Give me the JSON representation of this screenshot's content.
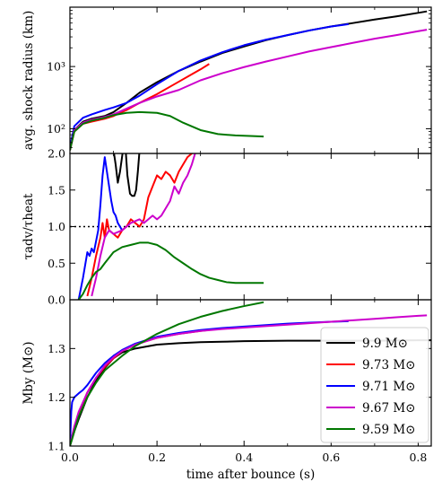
{
  "chart_data": [
    {
      "type": "line",
      "panel": "top",
      "ylabel": "avg. shock radius (km)",
      "yscale": "log",
      "xlim": [
        0.0,
        0.83
      ],
      "ylim": [
        40,
        9000
      ],
      "y_tick_labels": [
        "10²",
        "10³"
      ],
      "y_tick_values": [
        100,
        1000
      ],
      "series": [
        {
          "name": "9.9 M⊙",
          "color": "#000000",
          "x": [
            0.0,
            0.01,
            0.03,
            0.05,
            0.08,
            0.1,
            0.13,
            0.16,
            0.2,
            0.25,
            0.3,
            0.35,
            0.4,
            0.45,
            0.5,
            0.55,
            0.6,
            0.65,
            0.7,
            0.75,
            0.8,
            0.82
          ],
          "y": [
            45,
            95,
            130,
            145,
            160,
            185,
            260,
            380,
            560,
            850,
            1200,
            1650,
            2100,
            2650,
            3200,
            3800,
            4400,
            5000,
            5700,
            6400,
            7300,
            7700
          ]
        },
        {
          "name": "9.73 M⊙",
          "color": "#ff0000",
          "x": [
            0.0,
            0.01,
            0.03,
            0.05,
            0.08,
            0.1,
            0.13,
            0.16,
            0.2,
            0.24,
            0.28,
            0.3,
            0.32
          ],
          "y": [
            45,
            90,
            120,
            130,
            145,
            160,
            200,
            260,
            360,
            520,
            750,
            900,
            1100
          ]
        },
        {
          "name": "9.71 M⊙",
          "color": "#0000ff",
          "x": [
            0.0,
            0.01,
            0.03,
            0.05,
            0.08,
            0.1,
            0.13,
            0.16,
            0.2,
            0.25,
            0.3,
            0.35,
            0.4,
            0.45,
            0.5,
            0.55,
            0.6,
            0.64
          ],
          "y": [
            50,
            110,
            150,
            170,
            200,
            220,
            260,
            340,
            520,
            850,
            1250,
            1700,
            2200,
            2700,
            3200,
            3800,
            4400,
            4800
          ]
        },
        {
          "name": "9.67 M⊙",
          "color": "#cc00cc",
          "x": [
            0.0,
            0.01,
            0.03,
            0.05,
            0.08,
            0.1,
            0.13,
            0.16,
            0.2,
            0.25,
            0.3,
            0.35,
            0.4,
            0.45,
            0.5,
            0.55,
            0.6,
            0.65,
            0.7,
            0.75,
            0.8,
            0.82
          ],
          "y": [
            45,
            95,
            125,
            140,
            155,
            170,
            210,
            260,
            330,
            420,
            600,
            780,
            980,
            1200,
            1450,
            1750,
            2050,
            2400,
            2800,
            3200,
            3700,
            3900
          ]
        },
        {
          "name": "9.59 M⊙",
          "color": "#007700",
          "x": [
            0.0,
            0.01,
            0.03,
            0.05,
            0.08,
            0.1,
            0.13,
            0.16,
            0.2,
            0.23,
            0.26,
            0.3,
            0.34,
            0.38,
            0.42,
            0.445
          ],
          "y": [
            45,
            90,
            120,
            135,
            150,
            165,
            180,
            185,
            180,
            160,
            125,
            95,
            82,
            78,
            76,
            75
          ]
        }
      ]
    },
    {
      "type": "line",
      "panel": "middle",
      "ylabel": "τadv/τheat",
      "xlim": [
        0.0,
        0.83
      ],
      "ylim": [
        0.0,
        2.0
      ],
      "y_tick_labels": [
        "0.0",
        "0.5",
        "1.0",
        "1.5",
        "2.0"
      ],
      "y_tick_values": [
        0.0,
        0.5,
        1.0,
        1.5,
        2.0
      ],
      "reference_line": {
        "y": 1.0,
        "style": "dotted"
      },
      "series": [
        {
          "name": "9.9 M⊙",
          "color": "#000000",
          "x": [
            0.1,
            0.105,
            0.11,
            0.115,
            0.122,
            0.128,
            0.132,
            0.138,
            0.143,
            0.148,
            0.152,
            0.156,
            0.16
          ],
          "y": [
            2.05,
            1.85,
            1.6,
            1.75,
            2.05,
            2.05,
            1.7,
            1.45,
            1.42,
            1.42,
            1.5,
            1.75,
            2.05
          ]
        },
        {
          "name": "9.73 M⊙",
          "color": "#ff0000",
          "x": [
            0.04,
            0.05,
            0.06,
            0.07,
            0.075,
            0.08,
            0.085,
            0.09,
            0.1,
            0.11,
            0.12,
            0.13,
            0.14,
            0.15,
            0.16,
            0.17,
            0.18,
            0.19,
            0.2,
            0.21,
            0.22,
            0.23,
            0.24,
            0.25,
            0.26,
            0.27,
            0.28,
            0.29
          ],
          "y": [
            0.05,
            0.3,
            0.6,
            0.85,
            1.05,
            0.85,
            1.1,
            0.95,
            0.9,
            0.85,
            0.95,
            1.0,
            1.1,
            1.05,
            1.0,
            1.1,
            1.4,
            1.55,
            1.7,
            1.65,
            1.75,
            1.7,
            1.6,
            1.75,
            1.85,
            1.95,
            2.0,
            2.05
          ]
        },
        {
          "name": "9.71 M⊙",
          "color": "#0000ff",
          "x": [
            0.02,
            0.03,
            0.04,
            0.045,
            0.05,
            0.055,
            0.06,
            0.065,
            0.07,
            0.075,
            0.08,
            0.085,
            0.09,
            0.095,
            0.1,
            0.105,
            0.11,
            0.115,
            0.12
          ],
          "y": [
            0.0,
            0.3,
            0.65,
            0.6,
            0.7,
            0.65,
            0.8,
            0.95,
            1.3,
            1.7,
            1.95,
            1.75,
            1.55,
            1.35,
            1.2,
            1.15,
            1.05,
            1.0,
            0.95
          ]
        },
        {
          "name": "9.67 M⊙",
          "color": "#cc00cc",
          "x": [
            0.05,
            0.06,
            0.07,
            0.08,
            0.09,
            0.1,
            0.12,
            0.14,
            0.16,
            0.17,
            0.18,
            0.19,
            0.2,
            0.21,
            0.22,
            0.23,
            0.24,
            0.25,
            0.26,
            0.27,
            0.28,
            0.29
          ],
          "y": [
            0.05,
            0.3,
            0.6,
            0.85,
            0.95,
            0.9,
            0.95,
            1.05,
            1.1,
            1.05,
            1.1,
            1.15,
            1.1,
            1.15,
            1.25,
            1.35,
            1.55,
            1.45,
            1.6,
            1.7,
            1.85,
            2.05
          ]
        },
        {
          "name": "9.59 M⊙",
          "color": "#007700",
          "x": [
            0.02,
            0.03,
            0.04,
            0.05,
            0.06,
            0.07,
            0.08,
            0.1,
            0.12,
            0.14,
            0.16,
            0.18,
            0.2,
            0.22,
            0.24,
            0.26,
            0.28,
            0.3,
            0.32,
            0.34,
            0.36,
            0.38,
            0.4,
            0.42,
            0.445
          ],
          "y": [
            0.0,
            0.08,
            0.2,
            0.3,
            0.38,
            0.42,
            0.5,
            0.65,
            0.72,
            0.75,
            0.78,
            0.78,
            0.75,
            0.68,
            0.58,
            0.5,
            0.42,
            0.35,
            0.3,
            0.27,
            0.24,
            0.23,
            0.23,
            0.23,
            0.23
          ]
        }
      ]
    },
    {
      "type": "line",
      "panel": "bottom",
      "ylabel": "Mby (M⊙)",
      "xlabel": "time after bounce (s)",
      "xlim": [
        0.0,
        0.83
      ],
      "ylim": [
        1.1,
        1.4
      ],
      "x_tick_labels": [
        "0.0",
        "0.2",
        "0.4",
        "0.6",
        "0.8"
      ],
      "x_tick_values": [
        0.0,
        0.2,
        0.4,
        0.6,
        0.8
      ],
      "y_tick_labels": [
        "1.1",
        "1.2",
        "1.3"
      ],
      "y_tick_values": [
        1.1,
        1.2,
        1.3
      ],
      "legend": {
        "position": "lower-right",
        "entries": [
          "9.9 M⊙",
          "9.73 M⊙",
          "9.71 M⊙",
          "9.67 M⊙",
          "9.59 M⊙"
        ]
      },
      "series": [
        {
          "name": "9.9 M⊙",
          "color": "#000000",
          "x": [
            0.0,
            0.01,
            0.02,
            0.04,
            0.06,
            0.08,
            0.1,
            0.12,
            0.15,
            0.2,
            0.25,
            0.3,
            0.35,
            0.4,
            0.5,
            0.6,
            0.7,
            0.8,
            0.83
          ],
          "y": [
            1.1,
            1.13,
            1.155,
            1.2,
            1.235,
            1.26,
            1.28,
            1.292,
            1.3,
            1.308,
            1.311,
            1.313,
            1.314,
            1.315,
            1.316,
            1.316,
            1.316,
            1.317,
            1.317
          ]
        },
        {
          "name": "9.73 M⊙",
          "color": "#ff0000",
          "x": [
            0.0,
            0.01,
            0.02,
            0.04,
            0.06,
            0.08,
            0.1,
            0.12,
            0.15,
            0.2,
            0.25,
            0.3,
            0.32
          ],
          "y": [
            1.1,
            1.14,
            1.165,
            1.21,
            1.24,
            1.262,
            1.28,
            1.295,
            1.308,
            1.322,
            1.33,
            1.336,
            1.338
          ]
        },
        {
          "name": "9.71 M⊙",
          "color": "#0000ff",
          "x": [
            0.0,
            0.003,
            0.005,
            0.01,
            0.02,
            0.03,
            0.04,
            0.06,
            0.08,
            0.1,
            0.12,
            0.15,
            0.2,
            0.25,
            0.3,
            0.35,
            0.4,
            0.45,
            0.5,
            0.55,
            0.6,
            0.64
          ],
          "y": [
            1.1,
            1.17,
            1.19,
            1.2,
            1.208,
            1.215,
            1.225,
            1.25,
            1.27,
            1.285,
            1.297,
            1.31,
            1.324,
            1.332,
            1.338,
            1.342,
            1.345,
            1.348,
            1.351,
            1.353,
            1.355,
            1.356
          ]
        },
        {
          "name": "9.67 M⊙",
          "color": "#cc00cc",
          "x": [
            0.0,
            0.01,
            0.02,
            0.04,
            0.06,
            0.08,
            0.1,
            0.12,
            0.15,
            0.2,
            0.25,
            0.3,
            0.35,
            0.4,
            0.45,
            0.5,
            0.55,
            0.6,
            0.65,
            0.7,
            0.75,
            0.8,
            0.82
          ],
          "y": [
            1.1,
            1.14,
            1.17,
            1.21,
            1.24,
            1.265,
            1.282,
            1.295,
            1.308,
            1.322,
            1.33,
            1.336,
            1.34,
            1.343,
            1.346,
            1.349,
            1.352,
            1.355,
            1.358,
            1.361,
            1.364,
            1.367,
            1.368
          ]
        },
        {
          "name": "9.59 M⊙",
          "color": "#007700",
          "x": [
            0.0,
            0.01,
            0.02,
            0.04,
            0.06,
            0.08,
            0.1,
            0.12,
            0.15,
            0.2,
            0.25,
            0.3,
            0.35,
            0.4,
            0.445
          ],
          "y": [
            1.1,
            1.13,
            1.16,
            1.2,
            1.23,
            1.255,
            1.27,
            1.285,
            1.305,
            1.33,
            1.35,
            1.365,
            1.377,
            1.387,
            1.395
          ]
        }
      ]
    }
  ]
}
